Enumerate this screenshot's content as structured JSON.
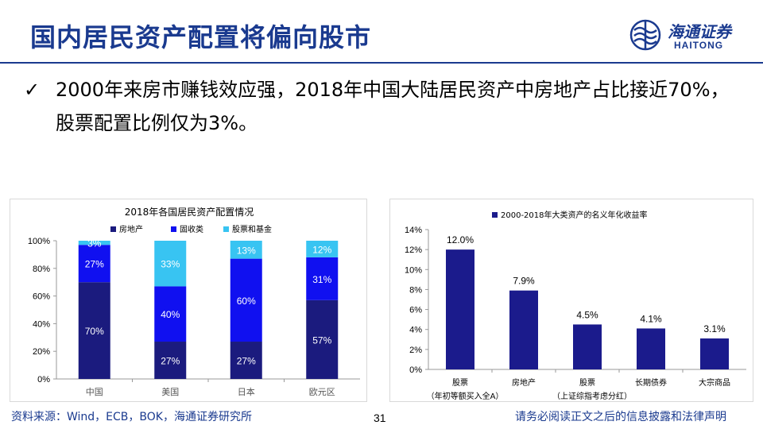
{
  "header": {
    "title": "国内居民资产配置将偏向股市",
    "logo_cn": "海通证券",
    "logo_en": "HAITONG"
  },
  "bullet": {
    "check": "✓",
    "text": "2000年来房市赚钱效应强，2018年中国大陆居民资产中房地产占比接近70%，股票配置比例仅为3%。"
  },
  "footer": {
    "source": "资料来源：Wind，ECB，BOK，海通证券研究所",
    "page": "31",
    "disclaimer": "请务必阅读正文之后的信息披露和法律声明"
  },
  "colors": {
    "brand": "#1a3a8f",
    "real_estate": "#1b1b7e",
    "deposits": "#1010f0",
    "stocks_funds": "#38c4f2",
    "bar2": "#1b1b8c"
  },
  "chart_data": [
    {
      "type": "bar",
      "stacked": true,
      "title": "2018年各国居民资产配置情况",
      "categories": [
        "中国",
        "美国",
        "日本",
        "欧元区"
      ],
      "series": [
        {
          "name": "房地产",
          "values": [
            70,
            27,
            27,
            57
          ],
          "labels": [
            "70%",
            "27%",
            "27%",
            "57%"
          ]
        },
        {
          "name": "固收类",
          "values": [
            27,
            40,
            60,
            31
          ],
          "labels": [
            "27%",
            "40%",
            "60%",
            "31%"
          ]
        },
        {
          "name": "股票和基金",
          "values": [
            3,
            33,
            13,
            12
          ],
          "labels": [
            "3%",
            "33%",
            "13%",
            "12%"
          ]
        }
      ],
      "yticks": [
        "0%",
        "20%",
        "40%",
        "60%",
        "80%",
        "100%"
      ],
      "ylim": [
        0,
        100
      ],
      "legend": "top",
      "grid": false
    },
    {
      "type": "bar",
      "title": "",
      "categories": [
        "股票",
        "房地产",
        "股票",
        "长期债券",
        "大宗商品"
      ],
      "category_sublabels": [
        "（年初等额买入全A）",
        "",
        "（上证综指考虑分红）",
        "",
        ""
      ],
      "series": [
        {
          "name": "2000-2018年大类资产的名义年化收益率",
          "values": [
            12.0,
            7.9,
            4.5,
            4.1,
            3.1
          ],
          "labels": [
            "12.0%",
            "7.9%",
            "4.5%",
            "4.1%",
            "3.1%"
          ]
        }
      ],
      "yticks": [
        "0%",
        "2%",
        "4%",
        "6%",
        "8%",
        "10%",
        "12%",
        "14%"
      ],
      "ylim": [
        0,
        14
      ],
      "legend": "top",
      "grid": false
    }
  ]
}
